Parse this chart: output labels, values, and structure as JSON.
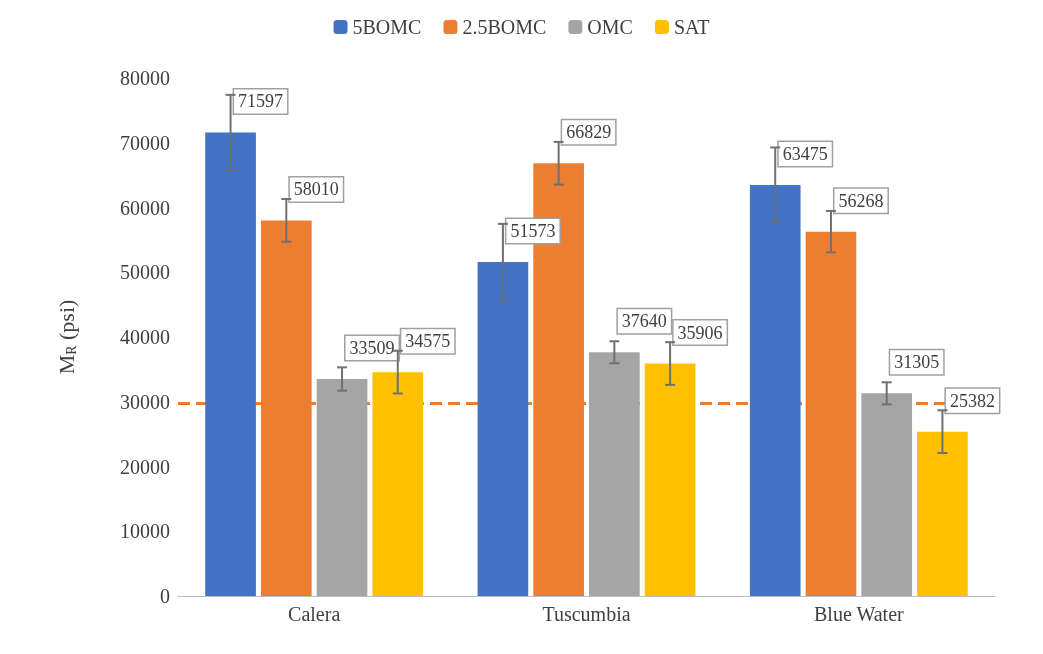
{
  "chart_data": {
    "type": "bar",
    "ylabel": "M$_{R}$ (psi)",
    "categories": [
      "Calera",
      "Tuscumbia",
      "Blue Water"
    ],
    "series": [
      {
        "name": "5BOMC",
        "color": "#4472c4",
        "values": [
          71597,
          51573,
          63475
        ],
        "errors": [
          5800,
          5900,
          5800
        ]
      },
      {
        "name": "2.5BOMC",
        "color": "#ed7d31",
        "values": [
          58010,
          66829,
          56268
        ],
        "errors": [
          3300,
          3300,
          3200
        ]
      },
      {
        "name": "OMC",
        "color": "#a5a5a5",
        "values": [
          33509,
          37640,
          31305
        ],
        "errors": [
          1800,
          1700,
          1700
        ]
      },
      {
        "name": "SAT",
        "color": "#ffc000",
        "values": [
          34575,
          35906,
          25382
        ],
        "errors": [
          3300,
          3300,
          3300
        ]
      }
    ],
    "ylim": [
      0,
      80000
    ],
    "yticks": [
      0,
      10000,
      20000,
      30000,
      40000,
      50000,
      60000,
      70000,
      80000
    ],
    "ref_lines": [
      {
        "axis": "y",
        "value": 29800,
        "color": "#ed7d31",
        "line_style": "dashed"
      }
    ],
    "data_labels": true,
    "grid": false,
    "legend": "top"
  }
}
